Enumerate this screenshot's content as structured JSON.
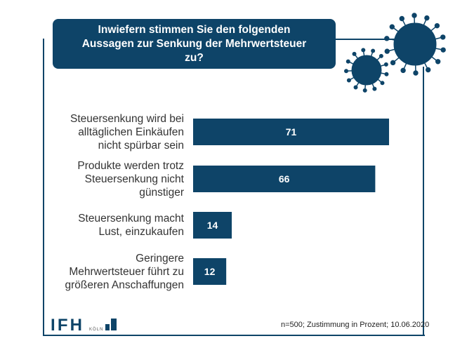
{
  "chart_data": {
    "type": "bar",
    "orientation": "horizontal",
    "title": "Inwiefern stimmen Sie den folgenden Aussagen zur Senkung der Mehrwertsteuer zu?",
    "categories": [
      "Steuersenkung wird bei alltäglichen Einkäufen nicht spürbar sein",
      "Produkte werden trotz Steuersenkung nicht günstiger",
      "Steuersenkung macht Lust, einzukaufen",
      "Geringere Mehrwertsteuer führt zu größeren Anschaffungen"
    ],
    "category_lines": [
      [
        "Steuersenkung wird bei",
        "alltäglichen Einkäufen",
        "nicht spürbar sein"
      ],
      [
        "Produkte werden trotz",
        "Steuersenkung nicht",
        "günstiger"
      ],
      [
        "Steuersenkung macht",
        "Lust, einzukaufen"
      ],
      [
        "Geringere",
        "Mehrwertsteuer führt zu",
        "größeren Anschaffungen"
      ]
    ],
    "values": [
      71,
      66,
      14,
      12
    ],
    "bar_color": "#0e4468",
    "grid": false
  },
  "title_lines": [
    "Inwiefern stimmen Sie den folgenden",
    "Aussagen zur Senkung der Mehrwertsteuer",
    "zu?"
  ],
  "footer": "n=500; Zustimmung in Prozent; 10.06.2020",
  "logo": {
    "text": "IFH",
    "sub": "KÖLN"
  },
  "decor": "virus-icons"
}
